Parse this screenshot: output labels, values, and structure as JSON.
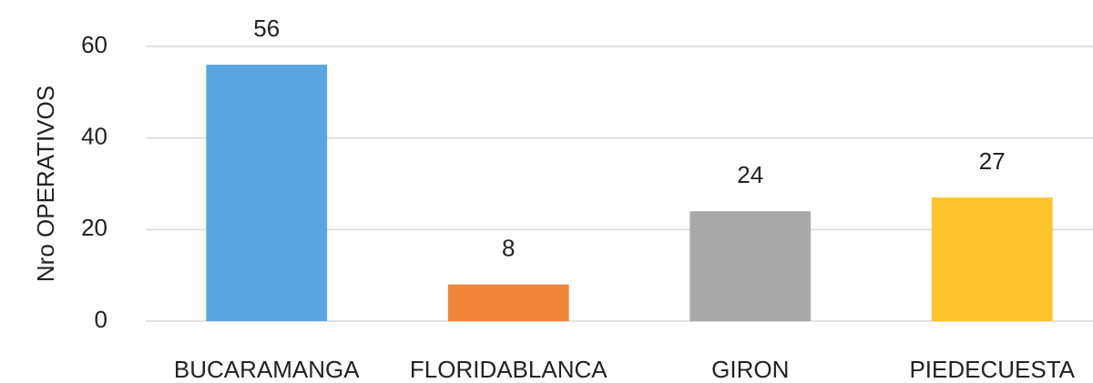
{
  "chart_data": {
    "type": "bar",
    "y_label": "Nro OPERATIVOS",
    "categories": [
      "BUCARAMANGA",
      "FLORIDABLANCA",
      "GIRON",
      "PIEDECUESTA"
    ],
    "values": [
      56,
      8,
      24,
      27
    ],
    "colors": [
      "#5aa5df",
      "#f0853a",
      "#a9a9a9",
      "#fcc42a"
    ],
    "ylim": [
      0,
      60
    ],
    "yticks": [
      0,
      20,
      40,
      60
    ],
    "grid": true,
    "data_labels": true
  }
}
